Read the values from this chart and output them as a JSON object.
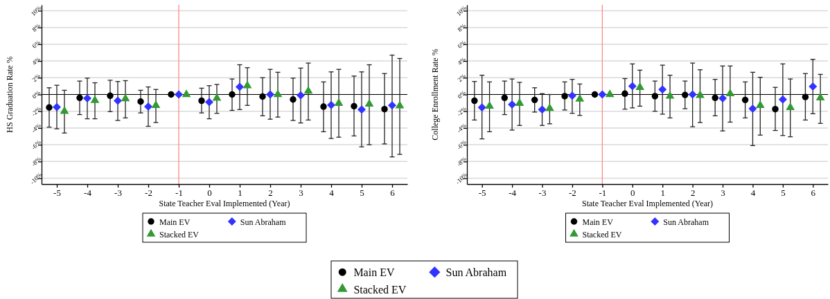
{
  "chart_data": [
    {
      "type": "scatter",
      "xlabel": "State Teacher Eval Implemented (Year)",
      "ylabel": "HS Graduation Rate %",
      "xlim": [
        -5.5,
        6.5
      ],
      "xticks": [
        -5,
        -4,
        -3,
        -2,
        -1,
        0,
        1,
        2,
        3,
        4,
        5,
        6
      ],
      "ylim": [
        -10.7,
        10.7
      ],
      "yticks": [
        {
          "value": -10,
          "label": "-10%"
        },
        {
          "value": -8,
          "label": "-8%"
        },
        {
          "value": -6,
          "label": "-6%"
        },
        {
          "value": -4,
          "label": "-4%"
        },
        {
          "value": -2,
          "label": "-2%"
        },
        {
          "value": 0,
          "label": "0%"
        },
        {
          "value": 2,
          "label": "2%"
        },
        {
          "value": 4,
          "label": "4%"
        },
        {
          "value": 6,
          "label": "6%"
        },
        {
          "value": 8,
          "label": "8%"
        },
        {
          "value": 10,
          "label": "10%"
        }
      ],
      "grid": "y",
      "legend": "bottom",
      "ref_lines": [
        {
          "axis": "x",
          "value": -1,
          "color": "#ff8080"
        },
        {
          "axis": "y",
          "value": 0,
          "color": "#000000"
        }
      ],
      "series": [
        {
          "name": "Main EV",
          "color": "#000000",
          "marker": "circle",
          "x": [
            -5.25,
            -4.25,
            -3.25,
            -2.25,
            -1.25,
            -0.25,
            0.75,
            1.75,
            2.75,
            3.75,
            4.75,
            5.75
          ],
          "values": [
            -1.55,
            -0.4,
            -0.15,
            -0.85,
            0,
            -0.75,
            0,
            -0.25,
            -0.6,
            -1.45,
            -1.4,
            -1.75
          ],
          "errors": [
            [
              -3.9,
              0.8
            ],
            [
              -2.4,
              1.6
            ],
            [
              -2.05,
              1.7
            ],
            [
              -2.2,
              0.5
            ],
            null,
            [
              -2.2,
              0.75
            ],
            [
              -1.9,
              1.85
            ],
            [
              -2.55,
              2.0
            ],
            [
              -3.1,
              1.95
            ],
            [
              -4.45,
              1.5
            ],
            [
              -4.95,
              2.2
            ],
            [
              -5.9,
              2.5
            ]
          ]
        },
        {
          "name": "Sun Abraham",
          "color": "#3333ff",
          "marker": "diamond",
          "x": [
            -5,
            -4,
            -3,
            -2,
            -1,
            0,
            1,
            2,
            3,
            4,
            5,
            6
          ],
          "values": [
            -1.5,
            -0.45,
            -0.75,
            -1.45,
            0,
            -0.9,
            0.9,
            0,
            -0.1,
            -1.25,
            -1.8,
            -1.3
          ],
          "errors": [
            [
              -4.1,
              1.1
            ],
            [
              -2.9,
              1.95
            ],
            [
              -3.1,
              1.55
            ],
            [
              -3.8,
              0.9
            ],
            null,
            [
              -2.9,
              1.05
            ],
            [
              -1.8,
              3.55
            ],
            [
              -2.95,
              3.0
            ],
            [
              -3.4,
              3.15
            ],
            [
              -5.25,
              2.7
            ],
            [
              -6.25,
              2.7
            ],
            [
              -7.45,
              4.7
            ]
          ]
        },
        {
          "name": "Stacked EV",
          "color": "#339933",
          "marker": "triangle",
          "x": [
            -4.75,
            -3.75,
            -2.75,
            -1.75,
            -0.75,
            0.25,
            1.25,
            2.25,
            3.25,
            4.25,
            5.25,
            6.25
          ],
          "values": [
            -2.0,
            -0.7,
            -0.5,
            -1.3,
            0,
            -0.45,
            1.05,
            0,
            0.4,
            -1.05,
            -1.15,
            -1.35
          ],
          "errors": [
            [
              -4.6,
              0.5
            ],
            [
              -2.9,
              1.4
            ],
            [
              -2.8,
              1.65
            ],
            [
              -3.35,
              0.6
            ],
            null,
            [
              -2.25,
              1.2
            ],
            [
              -1.3,
              3.2
            ],
            [
              -2.7,
              2.65
            ],
            [
              -3.05,
              3.75
            ],
            [
              -5.1,
              3.0
            ],
            [
              -6.0,
              3.55
            ],
            [
              -7.15,
              4.3
            ]
          ]
        }
      ]
    },
    {
      "type": "scatter",
      "xlabel": "State Teacher Eval Implemented (Year)",
      "ylabel": "College Enrollment Rate %",
      "xlim": [
        -5.5,
        6.5
      ],
      "xticks": [
        -5,
        -4,
        -3,
        -2,
        -1,
        0,
        1,
        2,
        3,
        4,
        5,
        6
      ],
      "ylim": [
        -10.7,
        10.7
      ],
      "yticks": [
        {
          "value": -10,
          "label": "-10%"
        },
        {
          "value": -8,
          "label": "-8%"
        },
        {
          "value": -6,
          "label": "-6%"
        },
        {
          "value": -4,
          "label": "-4%"
        },
        {
          "value": -2,
          "label": "-2%"
        },
        {
          "value": 0,
          "label": "0%"
        },
        {
          "value": 2,
          "label": "2%"
        },
        {
          "value": 4,
          "label": "4%"
        },
        {
          "value": 6,
          "label": "6%"
        },
        {
          "value": 8,
          "label": "8%"
        },
        {
          "value": 10,
          "label": "10%"
        }
      ],
      "grid": "y",
      "legend": "bottom",
      "ref_lines": [
        {
          "axis": "x",
          "value": -1,
          "color": "#ff8080"
        },
        {
          "axis": "y",
          "value": 0,
          "color": "#000000"
        }
      ],
      "series": [
        {
          "name": "Main EV",
          "color": "#000000",
          "marker": "circle",
          "x": [
            -5.25,
            -4.25,
            -3.25,
            -2.25,
            -1.25,
            -0.25,
            0.75,
            1.75,
            2.75,
            3.75,
            4.75,
            5.75
          ],
          "values": [
            -0.75,
            -0.4,
            -0.65,
            -0.2,
            0,
            0.1,
            -0.2,
            -0.05,
            -0.4,
            -0.65,
            -1.75,
            -0.3
          ],
          "errors": [
            [
              -3.05,
              1.55
            ],
            [
              -2.4,
              1.6
            ],
            [
              -2.1,
              0.8
            ],
            [
              -1.85,
              1.5
            ],
            null,
            [
              -1.75,
              1.9
            ],
            [
              -2.0,
              1.6
            ],
            [
              -1.7,
              1.6
            ],
            [
              -2.55,
              1.8
            ],
            [
              -2.8,
              1.5
            ],
            [
              -4.3,
              0.85
            ],
            [
              -3.05,
              2.5
            ]
          ]
        },
        {
          "name": "Sun Abraham",
          "color": "#3333ff",
          "marker": "diamond",
          "x": [
            -5,
            -4,
            -3,
            -2,
            -1,
            0,
            1,
            2,
            3,
            4,
            5,
            6
          ],
          "values": [
            -1.55,
            -1.2,
            -1.8,
            -0.15,
            0,
            1.0,
            0.6,
            0,
            -0.45,
            -1.7,
            -0.6,
            0.95
          ],
          "errors": [
            [
              -5.3,
              2.3
            ],
            [
              -4.25,
              1.85
            ],
            [
              -3.7,
              0.1
            ],
            [
              -2.25,
              1.8
            ],
            null,
            [
              -1.6,
              3.65
            ],
            [
              -2.35,
              3.5
            ],
            [
              -3.85,
              3.75
            ],
            [
              -4.35,
              3.4
            ],
            [
              -6.1,
              2.65
            ],
            [
              -4.9,
              3.65
            ],
            [
              -2.3,
              4.2
            ]
          ]
        },
        {
          "name": "Stacked EV",
          "color": "#339933",
          "marker": "triangle",
          "x": [
            -4.75,
            -3.75,
            -2.75,
            -1.75,
            -0.75,
            0.25,
            1.25,
            2.25,
            3.25,
            4.25,
            5.25,
            6.25
          ],
          "values": [
            -1.4,
            -1.05,
            -1.65,
            -0.55,
            0,
            0.85,
            -0.2,
            -0.1,
            0.1,
            -1.3,
            -1.55,
            -0.4
          ],
          "errors": [
            [
              -4.45,
              1.5
            ],
            [
              -3.7,
              1.45
            ],
            [
              -3.5,
              0
            ],
            [
              -2.5,
              1.25
            ],
            null,
            [
              -1.4,
              2.9
            ],
            [
              -2.8,
              2.3
            ],
            [
              -3.35,
              2.95
            ],
            [
              -3.3,
              3.4
            ],
            [
              -4.85,
              2.05
            ],
            [
              -5.05,
              1.85
            ],
            [
              -3.45,
              2.4
            ]
          ]
        }
      ]
    }
  ]
}
